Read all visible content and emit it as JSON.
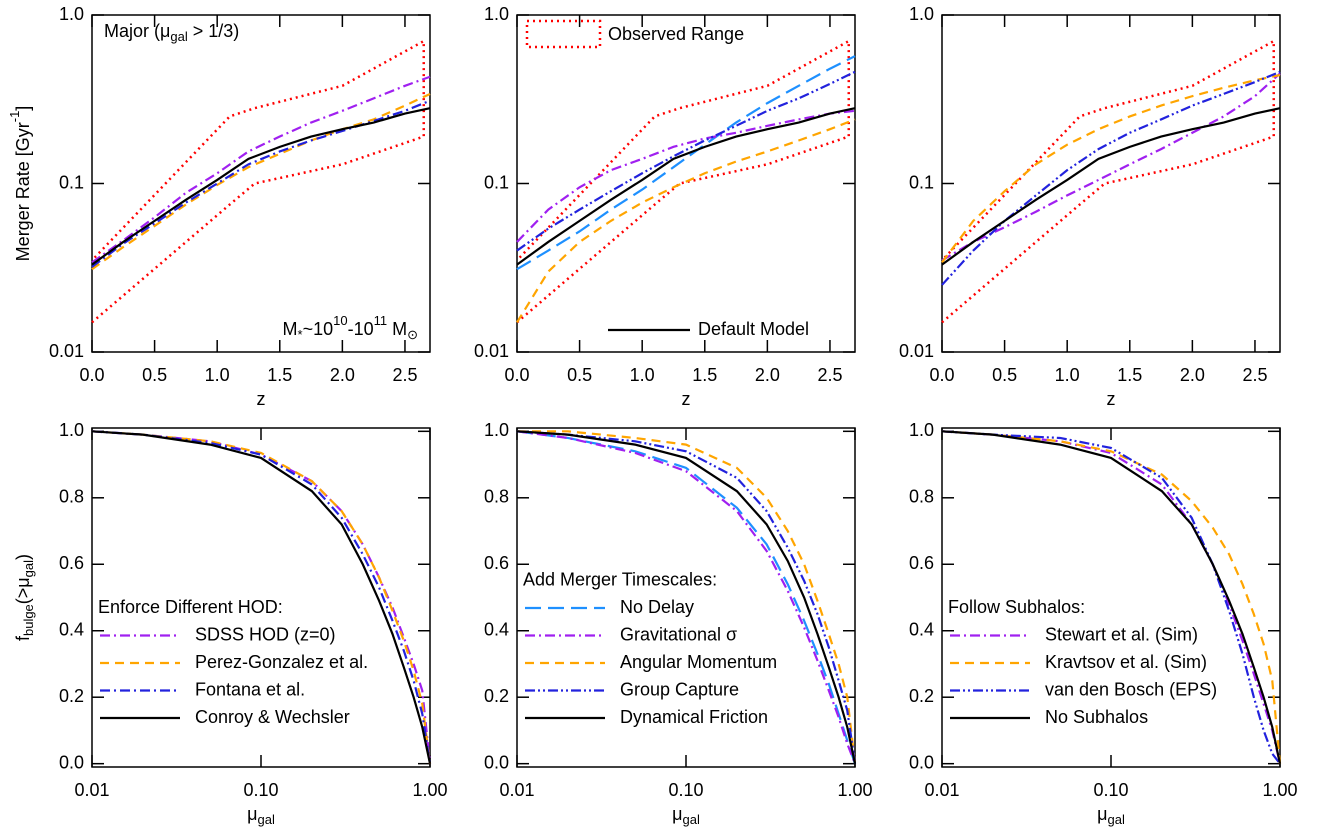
{
  "chart_data": [
    {
      "type": "line",
      "xlim": [
        0,
        2.7
      ],
      "ylim": [
        0.01,
        1
      ],
      "ylog": true,
      "xticks": [
        {
          "value": 0,
          "label": "0.0"
        },
        0.5,
        {
          "value": 1,
          "label": "1.0"
        },
        1.5,
        {
          "value": 2,
          "label": "2.0"
        },
        2.5
      ],
      "yticks": [
        0.01,
        0.1,
        {
          "value": 1,
          "label": "1.0"
        }
      ],
      "x_label": [
        {
          "text": "z"
        }
      ],
      "y_label": [
        {
          "text": "Merger Rate  [Gyr"
        },
        {
          "text": "-1",
          "shift": "super"
        },
        {
          "text": "]"
        }
      ],
      "annotations": [
        {
          "corner": "upper left",
          "segments": [
            {
              "text": "Major (μ"
            },
            {
              "text": "gal",
              "shift": "sub"
            },
            {
              "text": " > 1/3)"
            }
          ]
        },
        {
          "corner": "lower right",
          "segments": [
            {
              "text": "M"
            },
            {
              "text": "*",
              "shift": "sub"
            },
            {
              "text": "~10"
            },
            {
              "text": "10",
              "shift": "super"
            },
            {
              "text": "-10"
            },
            {
              "text": "11",
              "shift": "super"
            },
            {
              "text": " M"
            },
            {
              "text": "⊙",
              "shift": "sub"
            }
          ]
        }
      ],
      "x": [
        0,
        0.25,
        0.5,
        0.75,
        1.0,
        1.25,
        1.5,
        1.75,
        2.0,
        2.25,
        2.5,
        2.7
      ],
      "band": {
        "color": "#ff0000",
        "style": "dotted",
        "x": [
          0,
          1.1,
          1.3,
          2.0,
          2.65
        ],
        "lower": [
          0.015,
          0.075,
          0.1,
          0.13,
          0.19
        ],
        "upper": [
          0.035,
          0.25,
          0.28,
          0.38,
          0.7
        ]
      },
      "series": [
        {
          "color": "#a020f0",
          "style": "dash-dot",
          "values": [
            0.034,
            0.046,
            0.063,
            0.088,
            0.115,
            0.155,
            0.19,
            0.23,
            0.27,
            0.32,
            0.38,
            0.43
          ]
        },
        {
          "color": "#ffa500",
          "style": "dashed",
          "values": [
            0.031,
            0.042,
            0.056,
            0.075,
            0.098,
            0.125,
            0.15,
            0.18,
            0.21,
            0.24,
            0.29,
            0.34
          ]
        },
        {
          "color": "#2222dd",
          "style": "dash-dot",
          "values": [
            0.032,
            0.044,
            0.058,
            0.077,
            0.1,
            0.13,
            0.155,
            0.18,
            0.205,
            0.235,
            0.27,
            0.31
          ]
        },
        {
          "color": "#000000",
          "style": "solid",
          "values": [
            0.033,
            0.045,
            0.06,
            0.08,
            0.105,
            0.14,
            0.165,
            0.19,
            0.21,
            0.23,
            0.26,
            0.28
          ]
        }
      ]
    },
    {
      "type": "line",
      "xlim": [
        0,
        2.7
      ],
      "ylim": [
        0.01,
        1
      ],
      "ylog": true,
      "legend": "lower right",
      "xticks": [
        {
          "value": 0,
          "label": "0.0"
        },
        0.5,
        {
          "value": 1,
          "label": "1.0"
        },
        1.5,
        {
          "value": 2,
          "label": "2.0"
        },
        2.5
      ],
      "yticks": [
        0.01,
        0.1,
        {
          "value": 1,
          "label": "1.0"
        }
      ],
      "x_label": [
        {
          "text": "z"
        }
      ],
      "x": [
        0,
        0.25,
        0.5,
        0.75,
        1.0,
        1.25,
        1.5,
        1.75,
        2.0,
        2.25,
        2.5,
        2.7
      ],
      "band": {
        "name": "Observed Range",
        "color": "#ff0000",
        "style": "dotted",
        "x": [
          0,
          1.1,
          1.3,
          2.0,
          2.65
        ],
        "lower": [
          0.015,
          0.075,
          0.1,
          0.13,
          0.19
        ],
        "upper": [
          0.035,
          0.25,
          0.28,
          0.38,
          0.7
        ]
      },
      "series": [
        {
          "color": "#1e90ff",
          "style": "long-dash",
          "values": [
            0.031,
            0.04,
            0.052,
            0.07,
            0.092,
            0.125,
            0.17,
            0.23,
            0.3,
            0.38,
            0.48,
            0.57
          ]
        },
        {
          "color": "#a020f0",
          "style": "dash-dot",
          "values": [
            0.045,
            0.07,
            0.095,
            0.12,
            0.14,
            0.165,
            0.185,
            0.2,
            0.22,
            0.24,
            0.26,
            0.27
          ]
        },
        {
          "color": "#ffa500",
          "style": "dashed",
          "values": [
            0.015,
            0.03,
            0.045,
            0.06,
            0.077,
            0.095,
            0.115,
            0.135,
            0.155,
            0.18,
            0.21,
            0.24
          ]
        },
        {
          "color": "#2222dd",
          "style": "dash-dot-dot",
          "values": [
            0.04,
            0.054,
            0.07,
            0.09,
            0.115,
            0.145,
            0.18,
            0.22,
            0.27,
            0.32,
            0.39,
            0.46
          ]
        },
        {
          "name": "Default Model",
          "color": "#000000",
          "style": "solid",
          "values": [
            0.033,
            0.045,
            0.06,
            0.08,
            0.105,
            0.14,
            0.165,
            0.19,
            0.21,
            0.23,
            0.26,
            0.28
          ]
        }
      ]
    },
    {
      "type": "line",
      "xlim": [
        0,
        2.7
      ],
      "ylim": [
        0.01,
        1
      ],
      "ylog": true,
      "xticks": [
        {
          "value": 0,
          "label": "0.0"
        },
        0.5,
        {
          "value": 1,
          "label": "1.0"
        },
        1.5,
        {
          "value": 2,
          "label": "2.0"
        },
        2.5
      ],
      "yticks": [
        0.01,
        0.1,
        {
          "value": 1,
          "label": "1.0"
        }
      ],
      "x_label": [
        {
          "text": "z"
        }
      ],
      "x": [
        0,
        0.25,
        0.5,
        0.75,
        1.0,
        1.25,
        1.5,
        1.75,
        2.0,
        2.25,
        2.5,
        2.7
      ],
      "band": {
        "color": "#ff0000",
        "style": "dotted",
        "x": [
          0,
          1.1,
          1.3,
          2.0,
          2.65
        ],
        "lower": [
          0.015,
          0.075,
          0.1,
          0.13,
          0.19
        ],
        "upper": [
          0.035,
          0.25,
          0.28,
          0.38,
          0.7
        ]
      },
      "series": [
        {
          "color": "#a020f0",
          "style": "dash-dot",
          "values": [
            0.035,
            0.045,
            0.055,
            0.068,
            0.085,
            0.105,
            0.13,
            0.16,
            0.2,
            0.25,
            0.33,
            0.45
          ]
        },
        {
          "color": "#ffa500",
          "style": "dashed",
          "values": [
            0.034,
            0.06,
            0.09,
            0.13,
            0.17,
            0.21,
            0.25,
            0.29,
            0.33,
            0.37,
            0.41,
            0.44
          ]
        },
        {
          "color": "#2222dd",
          "style": "dash-dot-dot",
          "values": [
            0.025,
            0.04,
            0.06,
            0.085,
            0.12,
            0.16,
            0.2,
            0.24,
            0.29,
            0.34,
            0.4,
            0.46
          ]
        },
        {
          "color": "#000000",
          "style": "solid",
          "values": [
            0.033,
            0.045,
            0.06,
            0.08,
            0.105,
            0.14,
            0.165,
            0.19,
            0.21,
            0.23,
            0.26,
            0.28
          ]
        }
      ]
    },
    {
      "type": "line",
      "xlim": [
        0.01,
        1
      ],
      "xlog": true,
      "ylim": [
        -0.01,
        1.01
      ],
      "legend": "lower left",
      "xticks": [
        0.01,
        {
          "value": 0.1,
          "label": "0.10"
        },
        {
          "value": 1,
          "label": "1.00"
        }
      ],
      "yticks": [
        {
          "value": 0,
          "label": "0.0"
        },
        0.2,
        0.4,
        0.6,
        0.8,
        {
          "value": 1,
          "label": "1.0"
        }
      ],
      "x_label": [
        {
          "text": "μ"
        },
        {
          "text": "gal",
          "shift": "sub"
        }
      ],
      "y_label": [
        {
          "text": "f"
        },
        {
          "text": "bulge",
          "shift": "sub"
        },
        {
          "text": "(>μ"
        },
        {
          "text": "gal",
          "shift": "sub"
        },
        {
          "text": ")"
        }
      ],
      "legend_title": "Enforce Different HOD:",
      "x": [
        0.01,
        0.02,
        0.05,
        0.1,
        0.2,
        0.3,
        0.4,
        0.5,
        0.6,
        0.7,
        0.8,
        0.9,
        1.0
      ],
      "series": [
        {
          "name": "SDSS HOD (z=0)",
          "color": "#a020f0",
          "style": "dash-dot",
          "values": [
            1.0,
            0.99,
            0.97,
            0.93,
            0.85,
            0.76,
            0.66,
            0.56,
            0.47,
            0.38,
            0.3,
            0.22,
            0.0
          ]
        },
        {
          "name": "Perez-Gonzalez et al.",
          "color": "#ffa500",
          "style": "dashed",
          "values": [
            1.0,
            0.99,
            0.97,
            0.935,
            0.85,
            0.76,
            0.66,
            0.56,
            0.46,
            0.37,
            0.28,
            0.18,
            0.0
          ]
        },
        {
          "name": "Fontana et al.",
          "color": "#2222dd",
          "style": "dash-dot",
          "values": [
            1.0,
            0.99,
            0.965,
            0.93,
            0.84,
            0.74,
            0.63,
            0.53,
            0.43,
            0.34,
            0.25,
            0.15,
            0.0
          ]
        },
        {
          "name": "Conroy & Wechsler",
          "color": "#000000",
          "style": "solid",
          "values": [
            1.0,
            0.99,
            0.96,
            0.92,
            0.82,
            0.72,
            0.6,
            0.49,
            0.39,
            0.29,
            0.2,
            0.11,
            0.0
          ]
        }
      ]
    },
    {
      "type": "line",
      "xlim": [
        0.01,
        1
      ],
      "xlog": true,
      "ylim": [
        -0.01,
        1.01
      ],
      "legend": "lower left",
      "xticks": [
        0.01,
        {
          "value": 0.1,
          "label": "0.10"
        },
        {
          "value": 1,
          "label": "1.00"
        }
      ],
      "yticks": [
        {
          "value": 0,
          "label": "0.0"
        },
        0.2,
        0.4,
        0.6,
        0.8,
        {
          "value": 1,
          "label": "1.0"
        }
      ],
      "x_label": [
        {
          "text": "μ"
        },
        {
          "text": "gal",
          "shift": "sub"
        }
      ],
      "legend_title": "Add Merger Timescales:",
      "x": [
        0.01,
        0.02,
        0.05,
        0.1,
        0.2,
        0.3,
        0.4,
        0.5,
        0.6,
        0.7,
        0.8,
        0.9,
        1.0
      ],
      "series": [
        {
          "name": "No Delay",
          "color": "#1e90ff",
          "style": "long-dash",
          "values": [
            1.0,
            0.98,
            0.94,
            0.89,
            0.77,
            0.66,
            0.54,
            0.43,
            0.33,
            0.24,
            0.15,
            0.07,
            0.0
          ]
        },
        {
          "name": "Gravitational σ",
          "color": "#a020f0",
          "style": "dash-dot",
          "values": [
            1.0,
            0.98,
            0.935,
            0.88,
            0.76,
            0.64,
            0.52,
            0.41,
            0.31,
            0.22,
            0.14,
            0.06,
            0.0
          ]
        },
        {
          "name": "Angular Momentum",
          "color": "#ffa500",
          "style": "dashed",
          "values": [
            1.0,
            1.0,
            0.98,
            0.96,
            0.89,
            0.8,
            0.7,
            0.6,
            0.49,
            0.39,
            0.3,
            0.2,
            0.0
          ]
        },
        {
          "name": "Group Capture",
          "color": "#2222dd",
          "style": "dash-dot-dot",
          "values": [
            1.0,
            0.99,
            0.97,
            0.94,
            0.86,
            0.76,
            0.65,
            0.55,
            0.45,
            0.35,
            0.25,
            0.16,
            0.0
          ]
        },
        {
          "name": "Dynamical Friction",
          "color": "#000000",
          "style": "solid",
          "values": [
            1.0,
            0.99,
            0.96,
            0.92,
            0.82,
            0.72,
            0.61,
            0.5,
            0.39,
            0.29,
            0.2,
            0.11,
            0.0
          ]
        }
      ]
    },
    {
      "type": "line",
      "xlim": [
        0.01,
        1
      ],
      "xlog": true,
      "ylim": [
        -0.01,
        1.01
      ],
      "legend": "lower left",
      "xticks": [
        0.01,
        {
          "value": 0.1,
          "label": "0.10"
        },
        {
          "value": 1,
          "label": "1.00"
        }
      ],
      "yticks": [
        {
          "value": 0,
          "label": "0.0"
        },
        0.2,
        0.4,
        0.6,
        0.8,
        {
          "value": 1,
          "label": "1.0"
        }
      ],
      "x_label": [
        {
          "text": "μ"
        },
        {
          "text": "gal",
          "shift": "sub"
        }
      ],
      "legend_title": "Follow Subhalos:",
      "x": [
        0.01,
        0.02,
        0.05,
        0.1,
        0.2,
        0.3,
        0.4,
        0.5,
        0.6,
        0.7,
        0.8,
        0.9,
        1.0
      ],
      "series": [
        {
          "name": "Stewart et al. (Sim)",
          "color": "#a020f0",
          "style": "dash-dot",
          "values": [
            1.0,
            0.99,
            0.97,
            0.935,
            0.84,
            0.72,
            0.6,
            0.48,
            0.37,
            0.27,
            0.18,
            0.1,
            0.0
          ]
        },
        {
          "name": "Kravtsov et al. (Sim)",
          "color": "#ffa500",
          "style": "dashed",
          "values": [
            1.0,
            0.99,
            0.97,
            0.94,
            0.87,
            0.79,
            0.71,
            0.63,
            0.54,
            0.45,
            0.36,
            0.25,
            0.0
          ]
        },
        {
          "name": "van den Bosch (EPS)",
          "color": "#2222dd",
          "style": "dash-dot-dot",
          "values": [
            1.0,
            0.99,
            0.98,
            0.95,
            0.86,
            0.74,
            0.6,
            0.46,
            0.33,
            0.2,
            0.1,
            0.03,
            0.0
          ]
        },
        {
          "name": "No Subhalos",
          "color": "#000000",
          "style": "solid",
          "values": [
            1.0,
            0.99,
            0.96,
            0.92,
            0.82,
            0.72,
            0.6,
            0.49,
            0.39,
            0.29,
            0.2,
            0.11,
            0.0
          ]
        }
      ]
    }
  ]
}
